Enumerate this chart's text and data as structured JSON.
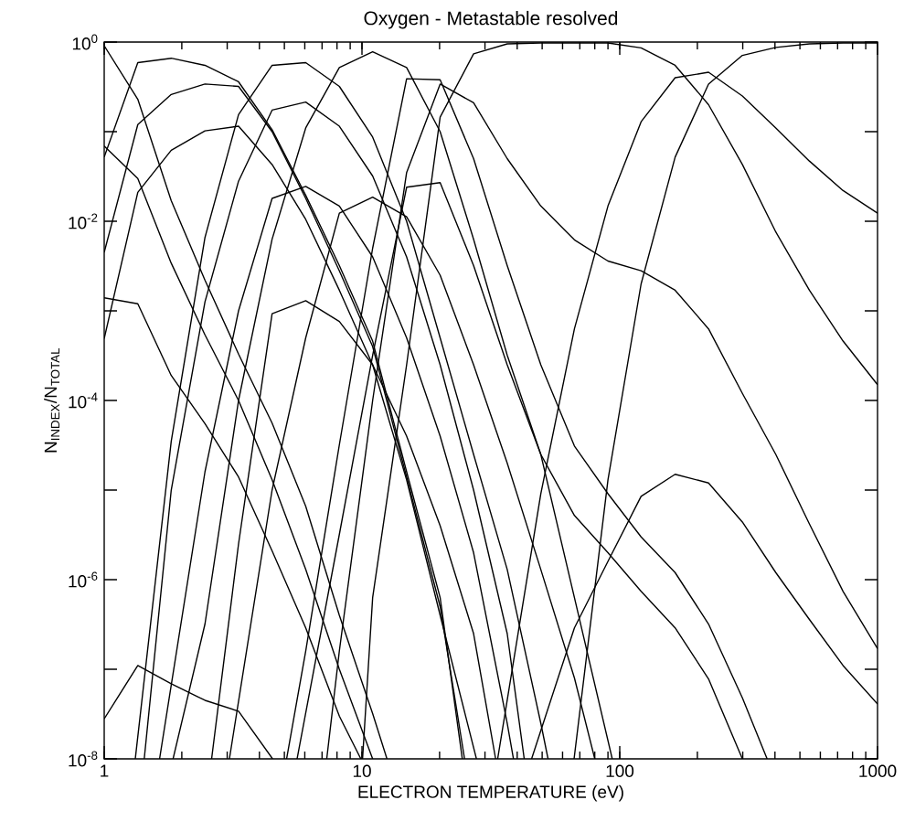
{
  "chart_data": {
    "type": "line",
    "title": "Oxygen - Metastable resolved",
    "xlabel": "ELECTRON TEMPERATURE (eV)",
    "ylabel": "N$_{INDEX}$/N$_{TOTAL}$",
    "log": "xy",
    "xlim": [
      1,
      1000
    ],
    "ylim": [
      1e-08,
      1
    ],
    "xticks": [
      1,
      10,
      100,
      1000
    ],
    "yticks": [
      {
        "value": 1e-08,
        "label": "10$^{-8}$"
      },
      {
        "value": 1e-07,
        "label": null
      },
      {
        "value": 1e-06,
        "label": "10$^{-6}$"
      },
      {
        "value": 1e-05,
        "label": null
      },
      {
        "value": 0.0001,
        "label": "10$^{-4}$"
      },
      {
        "value": 0.001,
        "label": null
      },
      {
        "value": 0.01,
        "label": "10$^{-2}$"
      },
      {
        "value": 0.1,
        "label": null
      },
      {
        "value": 1,
        "label": "10$^{0}$"
      }
    ],
    "grid": false,
    "marker": "none",
    "line_style": "solid",
    "series": [
      {
        "color": "#000000",
        "x": [
          1,
          1.35,
          1.82,
          2.46,
          3.32,
          4.48,
          6.05,
          8.17,
          11,
          12.5
        ],
        "values": [
          0.91,
          0.23,
          0.017,
          0.0022,
          0.00033,
          5.6e-05,
          6.6e-06,
          4e-07,
          3.2e-08,
          1e-08
        ]
      },
      {
        "color": "#000000",
        "x": [
          1,
          1.35,
          1.82,
          2.46,
          3.32,
          4.48,
          6.05,
          8.17,
          11
        ],
        "values": [
          0.069,
          0.03,
          0.0034,
          0.00054,
          0.0001,
          1.3e-05,
          1.3e-06,
          1e-07,
          1e-08
        ]
      },
      {
        "color": "#000000",
        "x": [
          1,
          1.35,
          1.82,
          2.46,
          3.32,
          4.48,
          6.05,
          8.17,
          9.9
        ],
        "values": [
          0.0014,
          0.0012,
          0.00019,
          5.5e-05,
          1.4e-05,
          2.1e-06,
          2.9e-07,
          3e-08,
          1e-08
        ]
      },
      {
        "color": "#000000",
        "x": [
          1,
          1.35,
          1.82,
          2.46,
          3.32,
          4.5
        ],
        "values": [
          2.8e-08,
          1.1e-07,
          6.9e-08,
          4.5e-08,
          3.4e-08,
          1e-08
        ]
      },
      {
        "color": "#000000",
        "x": [
          1,
          1.35,
          1.82,
          2.46,
          3.32,
          4.48,
          6.05,
          8.17,
          11,
          14.9,
          20.1,
          24.5
        ],
        "values": [
          0.052,
          0.59,
          0.66,
          0.55,
          0.36,
          0.105,
          0.0195,
          0.0032,
          0.00046,
          1.6e-05,
          6.3e-07,
          1e-08
        ]
      },
      {
        "color": "#000000",
        "x": [
          1,
          1.35,
          1.82,
          2.46,
          3.32,
          4.48,
          6.05,
          8.17,
          11,
          14.9,
          20.1,
          25
        ],
        "values": [
          0.0045,
          0.12,
          0.26,
          0.34,
          0.32,
          0.1,
          0.018,
          0.0028,
          0.0004,
          1.4e-05,
          5e-07,
          1e-08
        ]
      },
      {
        "color": "#000000",
        "x": [
          1,
          1.35,
          1.82,
          2.46,
          3.32,
          4.48,
          6.05,
          8.17,
          11,
          14.9,
          20.1,
          27.8
        ],
        "values": [
          0.00049,
          0.021,
          0.062,
          0.102,
          0.115,
          0.043,
          0.0105,
          0.0017,
          0.00025,
          1.3e-05,
          4e-07,
          1e-08
        ]
      },
      {
        "color": "#000000",
        "x": [
          1.32,
          1.82,
          2.46,
          3.32,
          4.48,
          6.05,
          8.17,
          11,
          14.9,
          20.1,
          27.1,
          36.6,
          49.4,
          52.7
        ],
        "values": [
          1e-08,
          3.5e-05,
          0.0066,
          0.155,
          0.55,
          0.59,
          0.32,
          0.087,
          0.01,
          0.0005,
          2.5e-05,
          1.3e-06,
          2.5e-08,
          1e-08
        ]
      },
      {
        "color": "#000000",
        "x": [
          1.43,
          1.82,
          2.46,
          3.32,
          4.48,
          6.05,
          8.17,
          11,
          14.9,
          20.1,
          27.1,
          36.6,
          42.6
        ],
        "values": [
          1e-08,
          1e-05,
          0.00126,
          0.028,
          0.174,
          0.214,
          0.115,
          0.032,
          0.004,
          0.00025,
          1e-05,
          2.5e-07,
          1e-08
        ]
      },
      {
        "color": "#000000",
        "x": [
          1.64,
          2.46,
          3.32,
          4.48,
          6.05,
          8.17,
          11,
          14.9,
          20.1,
          27.1,
          36.6,
          38.7
        ],
        "values": [
          1e-08,
          1.6e-05,
          0.001,
          0.018,
          0.0245,
          0.0148,
          0.004,
          0.0005,
          4e-05,
          2e-06,
          2.5e-08,
          1e-08
        ]
      },
      {
        "color": "#000000",
        "x": [
          2.61,
          3.32,
          4.48,
          6.05,
          8.17,
          11,
          14.9,
          20.1,
          27.1,
          33
        ],
        "values": [
          1e-08,
          2.5e-06,
          0.00093,
          0.0013,
          0.00076,
          0.00025,
          4e-05,
          4e-06,
          2.5e-07,
          1e-08
        ]
      },
      {
        "color": "#000000",
        "x": [
          1.85,
          2.46,
          3.32,
          4.48,
          6.05,
          8.17,
          11,
          14.9,
          20.1,
          27.1,
          36.6,
          49.4,
          66.7,
          93.5
        ],
        "values": [
          1e-08,
          3.2e-07,
          0.0001,
          0.0063,
          0.11,
          0.52,
          0.78,
          0.52,
          0.1,
          0.0063,
          0.00032,
          2.5e-05,
          6.3e-07,
          1e-08
        ]
      },
      {
        "color": "#000000",
        "x": [
          3.06,
          4.48,
          6.05,
          8.17,
          11,
          14.9,
          20.1,
          27.1,
          36.6,
          49.4,
          66.7,
          80
        ],
        "values": [
          1e-08,
          1e-05,
          0.0005,
          0.0123,
          0.0186,
          0.0112,
          0.0025,
          0.00025,
          2e-05,
          1.3e-06,
          8e-08,
          1e-08
        ]
      },
      {
        "color": "#000000",
        "x": [
          5.1,
          6.05,
          8.17,
          11,
          14.9,
          20.1,
          27.1,
          36.6,
          49.4,
          66.7,
          90,
          121,
          164,
          221,
          299,
          373
        ],
        "values": [
          1e-08,
          1.6e-07,
          3.2e-05,
          0.005,
          0.39,
          0.38,
          0.05,
          0.0032,
          0.00025,
          3.1e-05,
          9.1e-06,
          3e-06,
          1.2e-06,
          3.2e-07,
          4.8e-08,
          1e-08
        ]
      },
      {
        "color": "#000000",
        "x": [
          5.6,
          8.17,
          11,
          14.9,
          20.1,
          27.1,
          36.6,
          49.4,
          66.7,
          90,
          121,
          164,
          221,
          299
        ],
        "values": [
          1e-08,
          3.2e-06,
          0.00032,
          0.024,
          0.027,
          0.0032,
          0.00025,
          2.5e-05,
          5.2e-06,
          2e-06,
          7.4e-07,
          2.9e-07,
          7.8e-08,
          1e-08
        ]
      },
      {
        "color": "#000000",
        "x": [
          7.3,
          8.17,
          11,
          14.9,
          20.1,
          27.1,
          36.6,
          49.4,
          66.7,
          90,
          121,
          164,
          221,
          299,
          403,
          544,
          735,
          1000
        ],
        "values": [
          1e-08,
          1.6e-07,
          0.0001,
          0.035,
          0.34,
          0.21,
          0.05,
          0.0148,
          0.0062,
          0.0036,
          0.0028,
          0.0017,
          0.00063,
          0.00012,
          2.5e-05,
          4.2e-06,
          7.4e-07,
          1.7e-07
        ]
      },
      {
        "color": "#000000",
        "x": [
          10.05,
          11,
          14.9,
          20.1,
          27.1,
          36.6,
          49.4,
          66.7,
          90,
          121,
          164,
          221,
          299,
          403,
          544,
          735,
          1000
        ],
        "values": [
          1e-08,
          6.3e-07,
          0.00025,
          0.145,
          0.74,
          0.955,
          0.977,
          0.977,
          0.977,
          0.86,
          0.55,
          0.2,
          0.043,
          0.0076,
          0.0017,
          0.00046,
          0.00015
        ]
      },
      {
        "color": "#000000",
        "x": [
          33.6,
          49.4,
          66.7,
          90,
          121,
          164,
          221,
          299,
          403,
          544,
          735,
          1000
        ],
        "values": [
          1e-08,
          9.1e-06,
          0.00063,
          0.0148,
          0.129,
          0.4,
          0.46,
          0.25,
          0.11,
          0.047,
          0.022,
          0.0123
        ]
      },
      {
        "color": "#000000",
        "x": [
          66.5,
          90,
          121,
          164,
          221,
          299,
          403,
          544,
          735,
          1000
        ],
        "values": [
          1e-08,
          1.3e-05,
          0.002,
          0.052,
          0.34,
          0.71,
          0.87,
          0.955,
          0.977,
          0.977
        ]
      },
      {
        "color": "#000000",
        "x": [
          45.5,
          66.7,
          90,
          121,
          164,
          221,
          299,
          403,
          544,
          735,
          1000
        ],
        "values": [
          1e-08,
          2.9e-07,
          1.6e-06,
          8.5e-06,
          1.5e-05,
          1.2e-05,
          4.4e-06,
          1.2e-06,
          3.6e-07,
          1.1e-07,
          4.1e-08
        ]
      }
    ]
  }
}
